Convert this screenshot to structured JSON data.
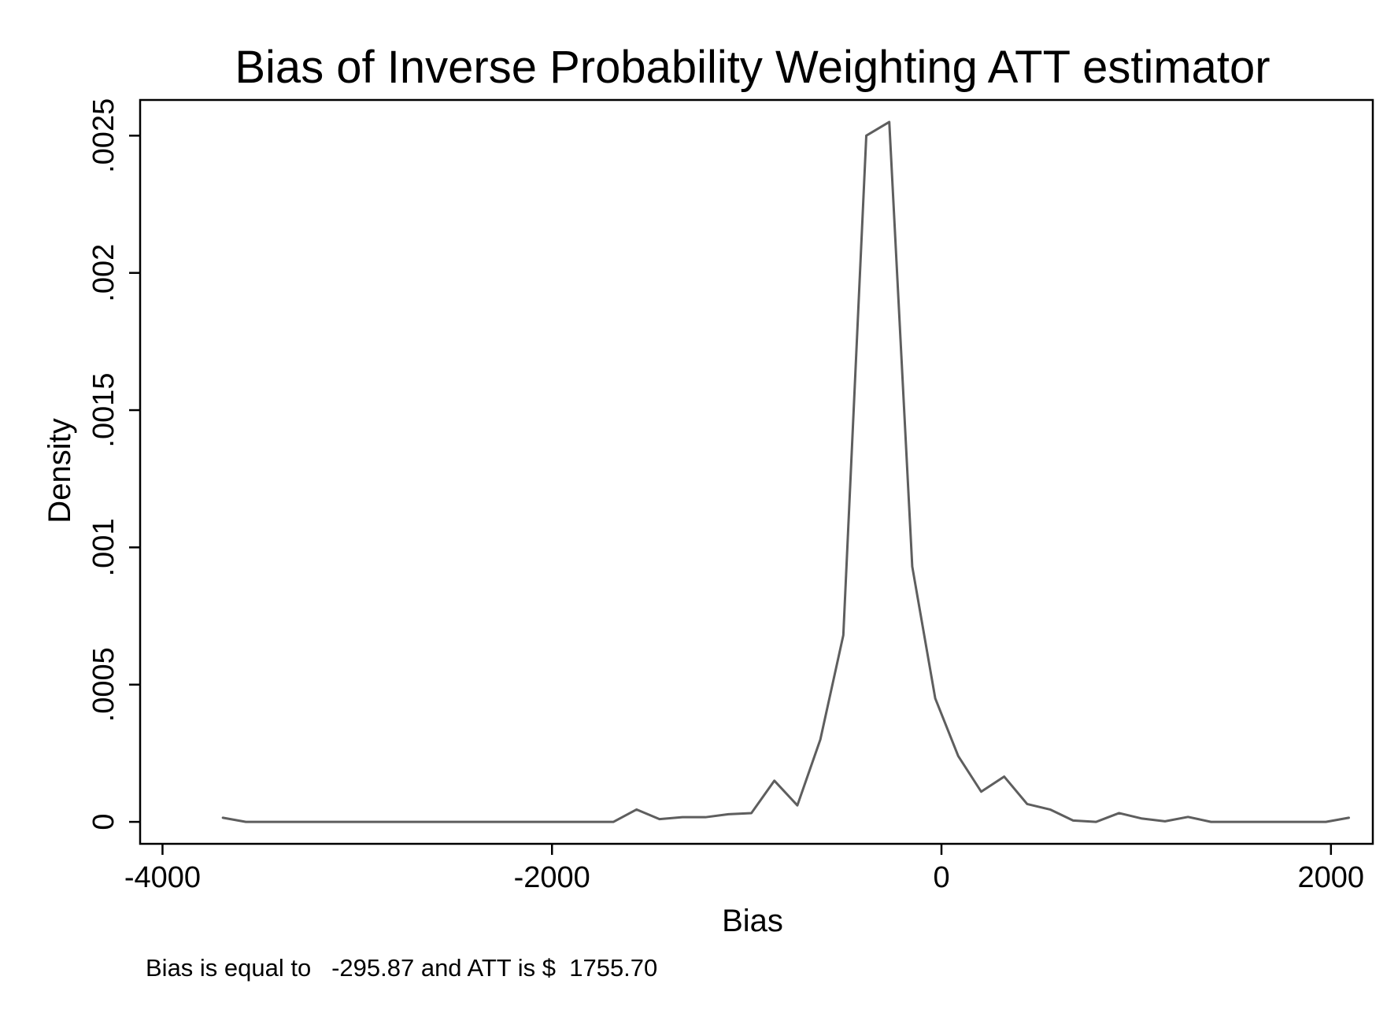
{
  "chart_data": {
    "type": "line",
    "title": "Bias of Inverse Probability Weighting ATT estimator",
    "xlabel": "Bias",
    "ylabel": "Density",
    "note": "Bias is equal to   -295.87 and ATT is $  1755.70",
    "xlim": [
      -4115,
      2215
    ],
    "ylim": [
      -8e-05,
      0.00263
    ],
    "x_ticks": [
      {
        "value": -4000,
        "label": "-4000"
      },
      {
        "value": -2000,
        "label": "-2000"
      },
      {
        "value": 0,
        "label": "0"
      },
      {
        "value": 2000,
        "label": "2000"
      }
    ],
    "y_ticks": [
      {
        "value": 0,
        "label": "0"
      },
      {
        "value": 0.0005,
        "label": ".0005"
      },
      {
        "value": 0.001,
        "label": ".001"
      },
      {
        "value": 0.0015,
        "label": ".0015"
      },
      {
        "value": 0.002,
        "label": ".002"
      },
      {
        "value": 0.0025,
        "label": ".0025"
      }
    ],
    "grid": false,
    "legend": "none",
    "line_color": "#5e5e5e",
    "series": [
      {
        "x": [
          -3690,
          -3572,
          -3454,
          -3336,
          -3218,
          -3100,
          -2982,
          -2864,
          -2746,
          -2628,
          -2510,
          -2392,
          -2274,
          -2156,
          -2038,
          -1920,
          -1802,
          -1684,
          -1566,
          -1448,
          -1330,
          -1212,
          -1094,
          -976,
          -858,
          -740,
          -622,
          -504,
          -386,
          -268,
          -150,
          -32,
          86,
          204,
          322,
          440,
          558,
          676,
          794,
          912,
          1030,
          1148,
          1266,
          1384,
          1502,
          1620,
          1738,
          1856,
          1974,
          2092
        ],
        "values": [
          1.5e-05,
          0,
          0,
          0,
          0,
          0,
          0,
          0,
          0,
          0,
          0,
          0,
          0,
          0,
          0,
          0,
          0,
          0,
          4.5e-05,
          1e-05,
          1.7e-05,
          1.7e-05,
          2.8e-05,
          3.2e-05,
          0.00015,
          6e-05,
          0.0003,
          0.00068,
          0.0025,
          0.00255,
          0.00093,
          0.00045,
          0.00024,
          0.00011,
          0.000165,
          6.5e-05,
          4.5e-05,
          5e-06,
          0,
          3.2e-05,
          1.2e-05,
          2e-06,
          1.8e-05,
          0,
          0,
          0,
          0,
          0,
          0,
          1.5e-05
        ]
      }
    ]
  }
}
